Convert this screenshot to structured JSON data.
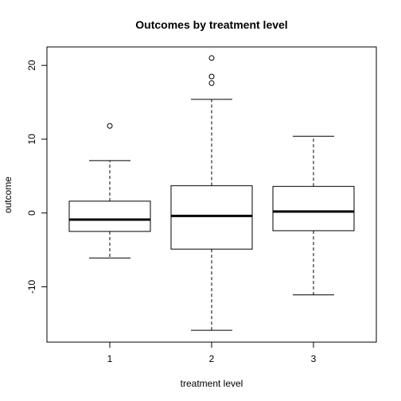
{
  "chart_data": {
    "type": "box",
    "title": "Outcomes by treatment level",
    "xlabel": "treatment level",
    "ylabel": "outcome",
    "ylim": [
      -17.5,
      22.5
    ],
    "yticks": [
      -10,
      0,
      10,
      20
    ],
    "categories": [
      "1",
      "2",
      "3"
    ],
    "boxes": [
      {
        "category": "1",
        "min": -6.1,
        "q1": -2.5,
        "median": -0.9,
        "q3": 1.6,
        "max": 7.1,
        "outliers": [
          11.8
        ]
      },
      {
        "category": "2",
        "min": -15.9,
        "q1": -4.9,
        "median": -0.4,
        "q3": 3.7,
        "max": 15.4,
        "outliers": [
          17.6,
          18.5,
          21.0
        ]
      },
      {
        "category": "3",
        "min": -11.1,
        "q1": -2.4,
        "median": 0.2,
        "q3": 3.6,
        "max": 10.4,
        "outliers": []
      }
    ],
    "grid": false,
    "legend": "none"
  }
}
